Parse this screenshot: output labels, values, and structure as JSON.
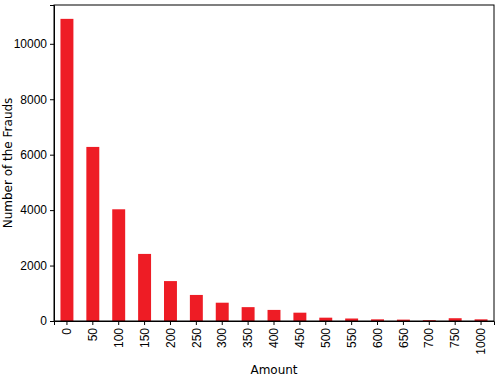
{
  "chart_data": {
    "type": "bar",
    "x_label": "Amount",
    "y_label": "Number of the Frauds",
    "categories": [
      "0",
      "50",
      "100",
      "150",
      "200",
      "250",
      "300",
      "350",
      "400",
      "450",
      "500",
      "550",
      "600",
      "650",
      "700",
      "750",
      "1000"
    ],
    "values": [
      10900,
      6280,
      4030,
      2420,
      1440,
      940,
      660,
      500,
      400,
      300,
      120,
      90,
      60,
      50,
      30,
      100,
      60
    ],
    "color": "#ee1c25",
    "ylim": [
      0,
      11400
    ],
    "yticks": [
      0,
      2000,
      4000,
      6000,
      8000,
      10000
    ],
    "grid": false
  }
}
